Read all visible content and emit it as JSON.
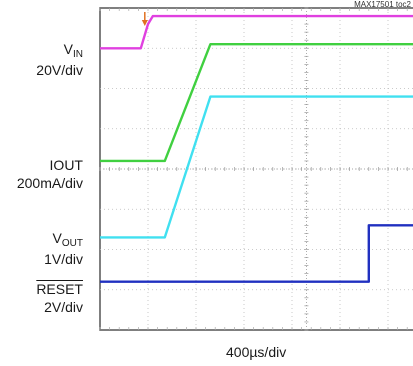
{
  "figure_id": "MAX17501 toc2",
  "chart_data": {
    "type": "line",
    "time_scale": "400µs/div",
    "grid": true,
    "divisions": {
      "x": 10,
      "y": 8
    },
    "trigger_marker_color": "#e07020",
    "channels": [
      {
        "name": "VIN",
        "name_main": "V",
        "name_sub": "IN",
        "scale": "20V/div",
        "color": "#e040e0",
        "overline": false,
        "x": [
          0,
          0.85,
          1.0,
          1.1,
          10
        ],
        "y": [
          7.0,
          7.0,
          7.6,
          7.8,
          7.8
        ]
      },
      {
        "name": "IOUT",
        "name_main": "IOUT",
        "name_sub": "",
        "scale": "200mA/div",
        "color": "#40d040",
        "overline": false,
        "x": [
          0,
          1.35,
          2.3,
          10
        ],
        "y": [
          4.2,
          4.2,
          7.1,
          7.1
        ]
      },
      {
        "name": "VOUT",
        "name_main": "V",
        "name_sub": "OUT",
        "scale": "1V/div",
        "color": "#40e0f0",
        "overline": false,
        "x": [
          0,
          1.35,
          2.3,
          10
        ],
        "y": [
          2.3,
          2.3,
          5.8,
          5.8
        ]
      },
      {
        "name": "RESET",
        "name_main": "RESET",
        "name_sub": "",
        "scale": "2V/div",
        "color": "#2030c0",
        "overline": true,
        "x": [
          0,
          5.6,
          5.6,
          10
        ],
        "y": [
          1.2,
          1.2,
          2.6,
          2.6
        ]
      }
    ]
  }
}
